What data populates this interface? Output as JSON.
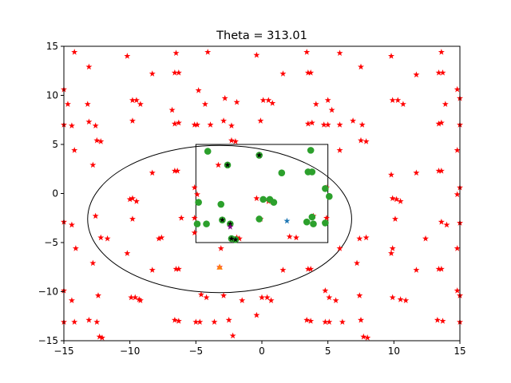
{
  "chart_data": {
    "type": "scatter",
    "title": "Theta = 313.01",
    "xlabel": "",
    "ylabel": "",
    "xlim": [
      -15,
      15
    ],
    "ylim": [
      -15,
      15
    ],
    "xticks": [
      -15,
      -10,
      -5,
      0,
      5,
      10,
      15
    ],
    "yticks": [
      -15,
      -10,
      -5,
      0,
      5,
      10,
      15
    ],
    "xtick_labels": [
      "−15",
      "−10",
      "−5",
      "0",
      "5",
      "10",
      "15"
    ],
    "ytick_labels": [
      "−15",
      "−10",
      "−5",
      "0",
      "5",
      "10",
      "15"
    ],
    "grid": false,
    "colors": {
      "red_star": "#ff0000",
      "green_dot": "#2ca02c",
      "black_marker": "#000000",
      "purple_star": "#800080",
      "blue_star": "#1f77b4",
      "orange_triangle": "#ff7f0e"
    },
    "rectangle": {
      "x": [
        -5,
        5
      ],
      "y": [
        -5,
        5
      ]
    },
    "ellipse": {
      "cx": -3.2,
      "cy": -2.6,
      "rx": 10.0,
      "ry": 7.5
    },
    "series": [
      {
        "marker": "red-star",
        "points": [
          [
            -14.2,
            14.4
          ],
          [
            -10.2,
            14
          ],
          [
            -6.5,
            14.3
          ],
          [
            -4.1,
            14.4
          ],
          [
            -0.4,
            14.1
          ],
          [
            3.4,
            14.4
          ],
          [
            5.9,
            14.3
          ],
          [
            9.8,
            14
          ],
          [
            13.6,
            14.4
          ],
          [
            -13.1,
            12.9
          ],
          [
            -8.3,
            12.2
          ],
          [
            -6.3,
            12.3
          ],
          [
            -6.6,
            12.3
          ],
          [
            1.6,
            12.2
          ],
          [
            3.5,
            12.3
          ],
          [
            3.7,
            12.3
          ],
          [
            7.5,
            12.9
          ],
          [
            11.7,
            12.1
          ],
          [
            13.4,
            12.3
          ],
          [
            13.7,
            12.3
          ],
          [
            -15,
            10.6
          ],
          [
            -9.8,
            9.5
          ],
          [
            -9.5,
            9.5
          ],
          [
            -9.2,
            9.1
          ],
          [
            -4.8,
            10.5
          ],
          [
            -2.8,
            9.7
          ],
          [
            -1.9,
            9.3
          ],
          [
            0.1,
            9.5
          ],
          [
            0.5,
            9.5
          ],
          [
            0.8,
            9.2
          ],
          [
            5,
            9.5
          ],
          [
            9.9,
            9.5
          ],
          [
            10.3,
            9.5
          ],
          [
            10.7,
            9.1
          ],
          [
            14.8,
            10.6
          ],
          [
            15,
            9.7
          ],
          [
            -14.7,
            9.1
          ],
          [
            -13.2,
            9.1
          ],
          [
            -4.3,
            9.1
          ],
          [
            -6.8,
            8.5
          ],
          [
            5.3,
            8.5
          ],
          [
            4.1,
            9.1
          ],
          [
            13.9,
            9.1
          ],
          [
            -15,
            7
          ],
          [
            -14.4,
            6.9
          ],
          [
            -13.1,
            7.3
          ],
          [
            -12.6,
            6.9
          ],
          [
            -9.8,
            7.4
          ],
          [
            -6.6,
            7.1
          ],
          [
            -6.3,
            7.2
          ],
          [
            -5.1,
            7.0
          ],
          [
            -4.9,
            7.0
          ],
          [
            -3.9,
            7.0
          ],
          [
            -2.9,
            7.4
          ],
          [
            -2.3,
            6.9
          ],
          [
            -0.1,
            7.4
          ],
          [
            3.5,
            7.1
          ],
          [
            3.8,
            7.2
          ],
          [
            4.7,
            7.0
          ],
          [
            5.0,
            7.0
          ],
          [
            5.9,
            7.0
          ],
          [
            6.9,
            7.4
          ],
          [
            7.6,
            7.0
          ],
          [
            13.4,
            7.1
          ],
          [
            13.6,
            7.2
          ],
          [
            15,
            7
          ],
          [
            -14.2,
            4.4
          ],
          [
            -12.5,
            5.4
          ],
          [
            -12.2,
            5.3
          ],
          [
            -2.3,
            5.4
          ],
          [
            -2,
            5.3
          ],
          [
            5.9,
            4.4
          ],
          [
            7.5,
            5.4
          ],
          [
            7.9,
            5.3
          ],
          [
            14.8,
            4.4
          ],
          [
            -12.8,
            2.9
          ],
          [
            -8.3,
            2.1
          ],
          [
            -6.4,
            2.3
          ],
          [
            -6.6,
            2.3
          ],
          [
            -3.3,
            2.9
          ],
          [
            9.8,
            1.9
          ],
          [
            11.7,
            2.1
          ],
          [
            13.6,
            2.3
          ],
          [
            13.4,
            2.3
          ],
          [
            -5.1,
            0.6
          ],
          [
            -4.9,
            -0.1
          ],
          [
            4.9,
            0.6
          ],
          [
            15,
            0.6
          ],
          [
            14.8,
            -0.1
          ],
          [
            -15,
            -2.9
          ],
          [
            -14.4,
            -3.2
          ],
          [
            -12.6,
            -2.3
          ],
          [
            -10.0,
            -0.6
          ],
          [
            -9.8,
            -0.5
          ],
          [
            -9.5,
            -0.8
          ],
          [
            -9.8,
            -2.6
          ],
          [
            -6.1,
            -2.5
          ],
          [
            -5.1,
            -2.5
          ],
          [
            -0.4,
            -0.5
          ],
          [
            0.1,
            -0.6
          ],
          [
            0.5,
            -0.8
          ],
          [
            -0.1,
            -2.6
          ],
          [
            3.9,
            -2.3
          ],
          [
            4.9,
            -2.5
          ],
          [
            9.9,
            -0.5
          ],
          [
            10.2,
            -0.6
          ],
          [
            10.5,
            -0.8
          ],
          [
            10.1,
            -2.6
          ],
          [
            13.6,
            -2.9
          ],
          [
            14.0,
            -3.2
          ],
          [
            15,
            -3.0
          ],
          [
            -14.1,
            -5.6
          ],
          [
            -12.2,
            -4.5
          ],
          [
            -11.7,
            -4.6
          ],
          [
            -7.8,
            -4.6
          ],
          [
            -7.6,
            -4.5
          ],
          [
            -5.1,
            -4.0
          ],
          [
            -3.1,
            -5.6
          ],
          [
            -1.9,
            -4.5
          ],
          [
            -1.7,
            -4.6
          ],
          [
            2.1,
            -4.4
          ],
          [
            2.6,
            -4.5
          ],
          [
            5.9,
            -5.6
          ],
          [
            7.4,
            -4.6
          ],
          [
            7.9,
            -4.5
          ],
          [
            9.9,
            -5.6
          ],
          [
            12.4,
            -4.6
          ],
          [
            14.8,
            -5.6
          ],
          [
            -12.8,
            -7.1
          ],
          [
            -10.2,
            -6.1
          ],
          [
            -8.3,
            -7.8
          ],
          [
            -6.5,
            -7.7
          ],
          [
            -6.3,
            -7.7
          ],
          [
            -3.2,
            -7.5
          ],
          [
            1.6,
            -7.8
          ],
          [
            3.5,
            -7.7
          ],
          [
            3.7,
            -7.7
          ],
          [
            7.2,
            -7.1
          ],
          [
            9.8,
            -6.1
          ],
          [
            11.7,
            -7.8
          ],
          [
            13.4,
            -7.7
          ],
          [
            13.6,
            -7.7
          ],
          [
            -15,
            -9.9
          ],
          [
            -14.4,
            -10.9
          ],
          [
            -12.4,
            -10.4
          ],
          [
            -9.9,
            -10.6
          ],
          [
            -9.6,
            -10.6
          ],
          [
            -9.3,
            -10.8
          ],
          [
            -9.2,
            -10.9
          ],
          [
            -4.6,
            -10.3
          ],
          [
            -4.2,
            -10.6
          ],
          [
            -2.9,
            -10.4
          ],
          [
            -1.5,
            -10.9
          ],
          [
            0,
            -10.6
          ],
          [
            0.4,
            -10.6
          ],
          [
            0.7,
            -10.9
          ],
          [
            4.8,
            -9.9
          ],
          [
            5.1,
            -10.6
          ],
          [
            5.6,
            -10.9
          ],
          [
            7.4,
            -10.4
          ],
          [
            9.9,
            -10.6
          ],
          [
            10.5,
            -10.8
          ],
          [
            10.9,
            -10.9
          ],
          [
            14.8,
            -9.9
          ],
          [
            15,
            -10.4
          ],
          [
            -15,
            -13.1
          ],
          [
            -14.2,
            -13.1
          ],
          [
            -13.1,
            -12.9
          ],
          [
            -12.5,
            -13.1
          ],
          [
            -12.3,
            -14.6
          ],
          [
            -12.1,
            -14.7
          ],
          [
            -6.6,
            -12.9
          ],
          [
            -6.3,
            -13.0
          ],
          [
            -5.0,
            -13.1
          ],
          [
            -4.7,
            -13.1
          ],
          [
            -3.6,
            -13.1
          ],
          [
            -2.5,
            -12.9
          ],
          [
            -2.2,
            -14.5
          ],
          [
            -0.4,
            -12.4
          ],
          [
            3.4,
            -12.9
          ],
          [
            3.7,
            -13.0
          ],
          [
            4.8,
            -13.1
          ],
          [
            5.1,
            -13.1
          ],
          [
            6.1,
            -13.1
          ],
          [
            7.5,
            -12.9
          ],
          [
            7.7,
            -14.6
          ],
          [
            8.0,
            -14.7
          ],
          [
            13.3,
            -12.9
          ],
          [
            13.7,
            -13.0
          ],
          [
            15,
            -13.1
          ]
        ]
      },
      {
        "marker": "green-dot",
        "points": [
          [
            -4.1,
            4.3
          ],
          [
            -0.2,
            3.9
          ],
          [
            1.5,
            2.1
          ],
          [
            3.7,
            4.4
          ],
          [
            3.5,
            2.2
          ],
          [
            3.8,
            2.2
          ],
          [
            -2.6,
            2.9
          ],
          [
            4.8,
            0.5
          ],
          [
            5.1,
            -0.3
          ],
          [
            0.1,
            -0.6
          ],
          [
            0.6,
            -0.6
          ],
          [
            0.9,
            -0.9
          ],
          [
            -4.8,
            -0.9
          ],
          [
            -3.1,
            -1.1
          ],
          [
            -0.2,
            -2.6
          ],
          [
            3.8,
            -2.4
          ],
          [
            3.4,
            -2.9
          ],
          [
            3.9,
            -3.1
          ],
          [
            4.8,
            -3.0
          ],
          [
            -4.9,
            -3.1
          ],
          [
            -4.2,
            -3.1
          ],
          [
            -3.0,
            -2.7
          ],
          [
            -2.4,
            -3.1
          ],
          [
            -2.3,
            -4.6
          ],
          [
            -2.0,
            -4.7
          ]
        ]
      },
      {
        "marker": "black-marker",
        "points": [
          [
            -0.2,
            3.9
          ],
          [
            -2.6,
            2.9
          ],
          [
            -3.0,
            -2.7
          ],
          [
            -2.4,
            -3.1
          ],
          [
            -2.3,
            -4.6
          ],
          [
            -2.0,
            -4.7
          ]
        ]
      },
      {
        "marker": "purple-star",
        "points": [
          [
            -2.4,
            -3.4
          ]
        ]
      },
      {
        "marker": "blue-star",
        "points": [
          [
            1.9,
            -2.8
          ]
        ]
      },
      {
        "marker": "orange-triangle",
        "points": [
          [
            -3.2,
            -7.5
          ]
        ]
      }
    ]
  }
}
